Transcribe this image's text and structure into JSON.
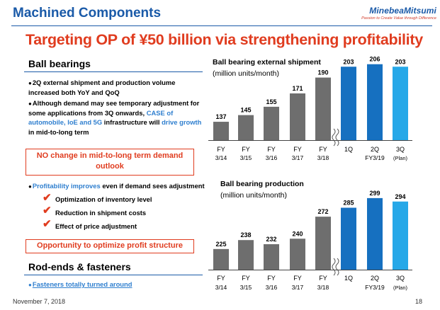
{
  "header": {
    "title": "Machined Components",
    "logo_brand": "MinebeaMitsumi",
    "logo_tagline": "Passion to Create Value through Difference"
  },
  "headline": "Targeting OP of ¥50 billion via strengthening profitability",
  "ball_bearings": {
    "title": "Ball bearings",
    "bullet1": "2Q external shipment and production volume increased both YoY and QoQ",
    "bullet2_a": "Although demand may see temporary adjustment for some applications from 3Q onwards,",
    "bullet2_b": "CASE of automobile, IoE and 5G",
    "bullet2_c": "infrastructure will",
    "bullet2_d": "drive growth",
    "bullet2_e": "in mid-to-long term",
    "box1": "NO change in mid-to-long term demand outlook",
    "bullet3_a": "Profitability improves",
    "bullet3_b": "even if demand sees adjustment",
    "checks": [
      "Optimization of inventory level",
      "Reduction in shipment costs",
      "Effect of price adjustment"
    ],
    "box2": "Opportunity to optimize profit structure"
  },
  "rod_ends": {
    "title": "Rod-ends & fasteners",
    "bullet": "Fasteners totally turned around"
  },
  "footer": {
    "date": "November 7, 2018",
    "page": "18"
  },
  "colors": {
    "gray_bar": "#6e6e6e",
    "dark_blue": "#1670c0",
    "light_blue": "#26a8e8",
    "accent_red": "#e03c1f",
    "brand_blue": "#1a5aa8"
  },
  "chart_data": [
    {
      "type": "bar",
      "title": "Ball bearing external shipment",
      "unit_label": "(million units/month)",
      "categories": [
        "FY 3/14",
        "FY 3/15",
        "FY 3/16",
        "FY 3/17",
        "FY 3/18",
        "1Q",
        "2Q",
        "3Q"
      ],
      "tick_top": [
        "FY",
        "FY",
        "FY",
        "FY",
        "FY",
        "1Q",
        "2Q",
        "3Q"
      ],
      "tick_bottom": [
        "3/14",
        "3/15",
        "3/16",
        "3/17",
        "3/18",
        "",
        "",
        "(Plan)"
      ],
      "group_label": "FY3/19",
      "values": [
        137,
        145,
        155,
        171,
        190,
        203,
        206,
        203
      ],
      "bar_colors": [
        "gray",
        "gray",
        "gray",
        "gray",
        "gray",
        "dark_blue",
        "dark_blue",
        "light_blue"
      ],
      "axis_break_after_index": 4,
      "ylim": [
        115,
        210
      ]
    },
    {
      "type": "bar",
      "title": "Ball bearing production",
      "unit_label": "(million units/month)",
      "categories": [
        "FY 3/14",
        "FY 3/15",
        "FY 3/16",
        "FY 3/17",
        "FY 3/18",
        "1Q",
        "2Q",
        "3Q"
      ],
      "tick_top": [
        "FY",
        "FY",
        "FY",
        "FY",
        "FY",
        "1Q",
        "2Q",
        "3Q"
      ],
      "tick_bottom": [
        "3/14",
        "3/15",
        "3/16",
        "3/17",
        "3/18",
        "",
        "",
        "(Plan)"
      ],
      "group_label": "FY3/19",
      "values": [
        225,
        238,
        232,
        240,
        272,
        285,
        299,
        294
      ],
      "bar_colors": [
        "gray",
        "gray",
        "gray",
        "gray",
        "gray",
        "dark_blue",
        "dark_blue",
        "light_blue"
      ],
      "axis_break_after_index": 4,
      "ylim": [
        195,
        303
      ]
    }
  ]
}
